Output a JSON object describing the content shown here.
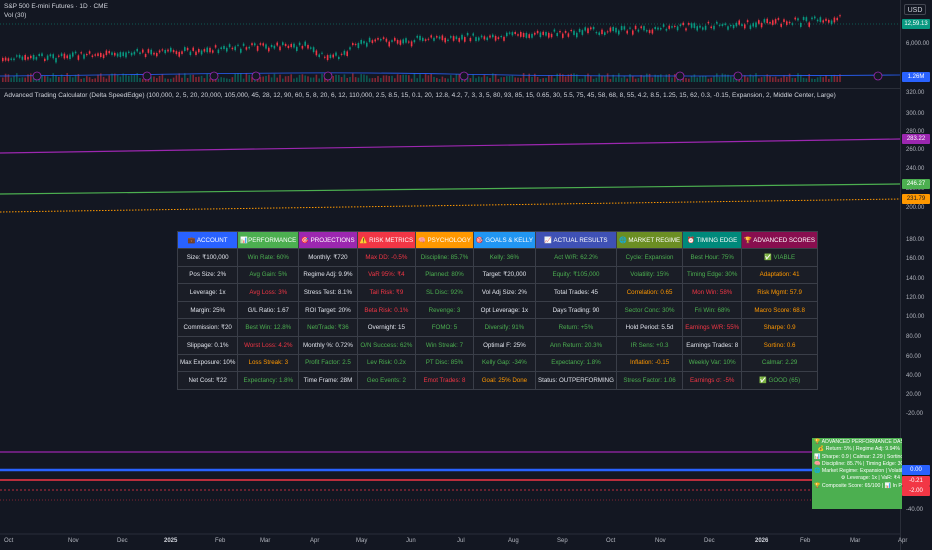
{
  "header": {
    "symbol_line": "S&P 500 E-mini Futures · 1D · CME",
    "vol_line": "Vol (30)",
    "indicator_line": "Advanced Trading Calculator (Delta SpeedEdge) (100,000, 2, 5, 20, 20,000, 105,000, 45, 28, 12, 90, 60, 5, 8, 20, 6, 12, 110,000, 2.5, 8.5, 15, 0.1, 20, 12.8, 4.2, 7, 3, 3, 5, 80, 93, 85, 15, 0.65, 30, 5.5, 75, 45, 58, 68, 8, 55, 4.2, 8.5, 1.25, 15, 62, 0.3, -0.15, Expansion, 2, Middle Center, Large)",
    "currency": "USD"
  },
  "right_axis": {
    "price_main": "12,59.13",
    "price_6000": "6,000.00",
    "vol_tag": "1.26M",
    "ticks": [
      "320.00",
      "300.00",
      "280.00",
      "260.00",
      "240.00",
      "220.00",
      "200.00",
      "180.00",
      "160.00",
      "140.00",
      "120.00",
      "100.00",
      "80.00",
      "60.00",
      "40.00",
      "20.00",
      "-20.00",
      "-40.00"
    ],
    "tag_purple": "283.22",
    "tag_green": "246.27",
    "tag_orange": "231.79",
    "tag_blue": "0.00",
    "tag_red1": "-0.21",
    "tag_red2": "-2.00"
  },
  "x_axis": [
    "Oct",
    "Nov",
    "Dec",
    "2025",
    "Feb",
    "Mar",
    "Apr",
    "May",
    "Jun",
    "Jul",
    "Aug",
    "Sep",
    "Oct",
    "Nov",
    "Dec",
    "2026",
    "Feb",
    "Mar",
    "Apr"
  ],
  "colors": {
    "purple": "#9c27b0",
    "green": "#4caf50",
    "orange": "#ff9800",
    "blue": "#2962ff",
    "red": "#f23645"
  },
  "table": {
    "headers": [
      {
        "label": "💼 ACCOUNT",
        "bg": "#2962ff"
      },
      {
        "label": "📊PERFORMANCE",
        "bg": "#4caf50"
      },
      {
        "label": "🎯 PROJECTIONS",
        "bg": "#9c27b0"
      },
      {
        "label": "⚠️ RISK METRICS",
        "bg": "#f23645"
      },
      {
        "label": "🧠 PSYCHOLOGY",
        "bg": "#ff9800"
      },
      {
        "label": "🎯 GOALS & KELLY",
        "bg": "#2196f3"
      },
      {
        "label": "📈 ACTUAL RESULTS",
        "bg": "#3f51b5"
      },
      {
        "label": "🌐 MARKET REGIME",
        "bg": "#6b8e23"
      },
      {
        "label": "⏰ TIMING EDGE",
        "bg": "#00897b"
      },
      {
        "label": "🏆 ADVANCED SCORES",
        "bg": "#880e4f"
      }
    ],
    "rows": [
      [
        {
          "t": "Size: ₹100,000",
          "c": "c-w"
        },
        {
          "t": "Win Rate: 60%",
          "c": "c-g"
        },
        {
          "t": "Monthly: ₹720",
          "c": "c-w"
        },
        {
          "t": "Max DD: -0.5%",
          "c": "c-r"
        },
        {
          "t": "Discipline: 85.7%",
          "c": "c-g"
        },
        {
          "t": "Kelly: 36%",
          "c": "c-g"
        },
        {
          "t": "Act W/R: 62.2%",
          "c": "c-g"
        },
        {
          "t": "Cycle: Expansion",
          "c": "c-g"
        },
        {
          "t": "Best Hour: 75%",
          "c": "c-g"
        },
        {
          "t": "✅ VIABLE",
          "c": "c-g"
        }
      ],
      [
        {
          "t": "Pos Size: 2%",
          "c": "c-w"
        },
        {
          "t": "Avg Gain: 5%",
          "c": "c-g"
        },
        {
          "t": "Regime Adj: 9.9%",
          "c": "c-w"
        },
        {
          "t": "VaR 95%: ₹4",
          "c": "c-r"
        },
        {
          "t": "Planned: 80%",
          "c": "c-g"
        },
        {
          "t": "Target: ₹20,000",
          "c": "c-w"
        },
        {
          "t": "Equity: ₹105,000",
          "c": "c-g"
        },
        {
          "t": "Volatility: 15%",
          "c": "c-g"
        },
        {
          "t": "Timing Edge: 30%",
          "c": "c-g"
        },
        {
          "t": "Adaptation: 41",
          "c": "c-o"
        }
      ],
      [
        {
          "t": "Leverage: 1x",
          "c": "c-w"
        },
        {
          "t": "Avg Loss: 3%",
          "c": "c-r"
        },
        {
          "t": "Stress Test: 8.1%",
          "c": "c-w"
        },
        {
          "t": "Tail Risk: ₹9",
          "c": "c-r"
        },
        {
          "t": "SL Disc: 92%",
          "c": "c-g"
        },
        {
          "t": "Vol Adj Size: 2%",
          "c": "c-w"
        },
        {
          "t": "Total Trades: 45",
          "c": "c-w"
        },
        {
          "t": "Correlation: 0.65",
          "c": "c-o"
        },
        {
          "t": "Mon Win: 58%",
          "c": "c-r"
        },
        {
          "t": "Risk Mgmt: 57.9",
          "c": "c-o"
        }
      ],
      [
        {
          "t": "Margin: 25%",
          "c": "c-w"
        },
        {
          "t": "G/L Ratio: 1.67",
          "c": "c-w"
        },
        {
          "t": "ROI Target: 20%",
          "c": "c-w"
        },
        {
          "t": "Beta Risk: 0.1%",
          "c": "c-r"
        },
        {
          "t": "Revenge: 3",
          "c": "c-g"
        },
        {
          "t": "Opt Leverage: 1x",
          "c": "c-w"
        },
        {
          "t": "Days Trading: 90",
          "c": "c-w"
        },
        {
          "t": "Sector Conc: 30%",
          "c": "c-g"
        },
        {
          "t": "Fri Win: 68%",
          "c": "c-g"
        },
        {
          "t": "Macro Score: 68.8",
          "c": "c-o"
        }
      ],
      [
        {
          "t": "Commission: ₹20",
          "c": "c-w"
        },
        {
          "t": "Best Win: 12.8%",
          "c": "c-g"
        },
        {
          "t": "Net/Trade: ₹36",
          "c": "c-g"
        },
        {
          "t": "Overnight: 15",
          "c": "c-w"
        },
        {
          "t": "FOMO: 5",
          "c": "c-g"
        },
        {
          "t": "Diversify: 91%",
          "c": "c-g"
        },
        {
          "t": "Return: +5%",
          "c": "c-g"
        },
        {
          "t": "Hold Period: 5.5d",
          "c": "c-w"
        },
        {
          "t": "Earnings W/R: 55%",
          "c": "c-r"
        },
        {
          "t": "Sharpe: 0.9",
          "c": "c-o"
        }
      ],
      [
        {
          "t": "Slippage: 0.1%",
          "c": "c-w"
        },
        {
          "t": "Worst Loss: 4.2%",
          "c": "c-r"
        },
        {
          "t": "Monthly %: 0.72%",
          "c": "c-w"
        },
        {
          "t": "O/N Success: 62%",
          "c": "c-g"
        },
        {
          "t": "Win Streak: 7",
          "c": "c-g"
        },
        {
          "t": "Optimal F: 25%",
          "c": "c-w"
        },
        {
          "t": "Ann Return: 20.3%",
          "c": "c-g"
        },
        {
          "t": "IR Sens: +0.3",
          "c": "c-g"
        },
        {
          "t": "Earnings Trades: 8",
          "c": "c-w"
        },
        {
          "t": "Sortino: 0.6",
          "c": "c-o"
        }
      ],
      [
        {
          "t": "Max Exposure: 10%",
          "c": "c-w"
        },
        {
          "t": "Loss Streak: 3",
          "c": "c-o"
        },
        {
          "t": "Profit Factor: 2.5",
          "c": "c-g"
        },
        {
          "t": "Lev Risk: 0.2x",
          "c": "c-g"
        },
        {
          "t": "PT Disc: 85%",
          "c": "c-g"
        },
        {
          "t": "Kelly Gap: -34%",
          "c": "c-g"
        },
        {
          "t": "Expectancy: 1.8%",
          "c": "c-g"
        },
        {
          "t": "Inflation: -0.15",
          "c": "c-o"
        },
        {
          "t": "Weekly Var: 10%",
          "c": "c-g"
        },
        {
          "t": "Calmar: 2.29",
          "c": "c-g"
        }
      ],
      [
        {
          "t": "Net Cost: ₹22",
          "c": "c-w"
        },
        {
          "t": "Expectancy: 1.8%",
          "c": "c-g"
        },
        {
          "t": "Time Frame: 28M",
          "c": "c-w"
        },
        {
          "t": "Geo Events: 2",
          "c": "c-g"
        },
        {
          "t": "Emot Trades: 8",
          "c": "c-r"
        },
        {
          "t": "Goal: 25% Done",
          "c": "c-o"
        },
        {
          "t": "Status: OUTPERFORMING",
          "c": "c-w"
        },
        {
          "t": "Stress Factor: 1.06",
          "c": "c-g"
        },
        {
          "t": "Earnings σ: -5%",
          "c": "c-r"
        },
        {
          "t": "✅ GOOD (65)",
          "c": "c-g"
        }
      ]
    ]
  },
  "mini_dashboard": [
    "🏆 ADVANCED PERFORMANCE DASHBO",
    "💰 Return: 5% | Regime Adj: 9.94%",
    "📊 Sharpe: 0.9 | Calmar: 2.29 | Sortino",
    "🧠 Discipline: 85.7% | Timing Edge: 30",
    "🌐 Market Regime: Expansion | Volatility",
    "⚙ Leverage: 1x | VaR: ₹4",
    "🏆 Composite Score: 65/100 | 📊 In Prog"
  ]
}
